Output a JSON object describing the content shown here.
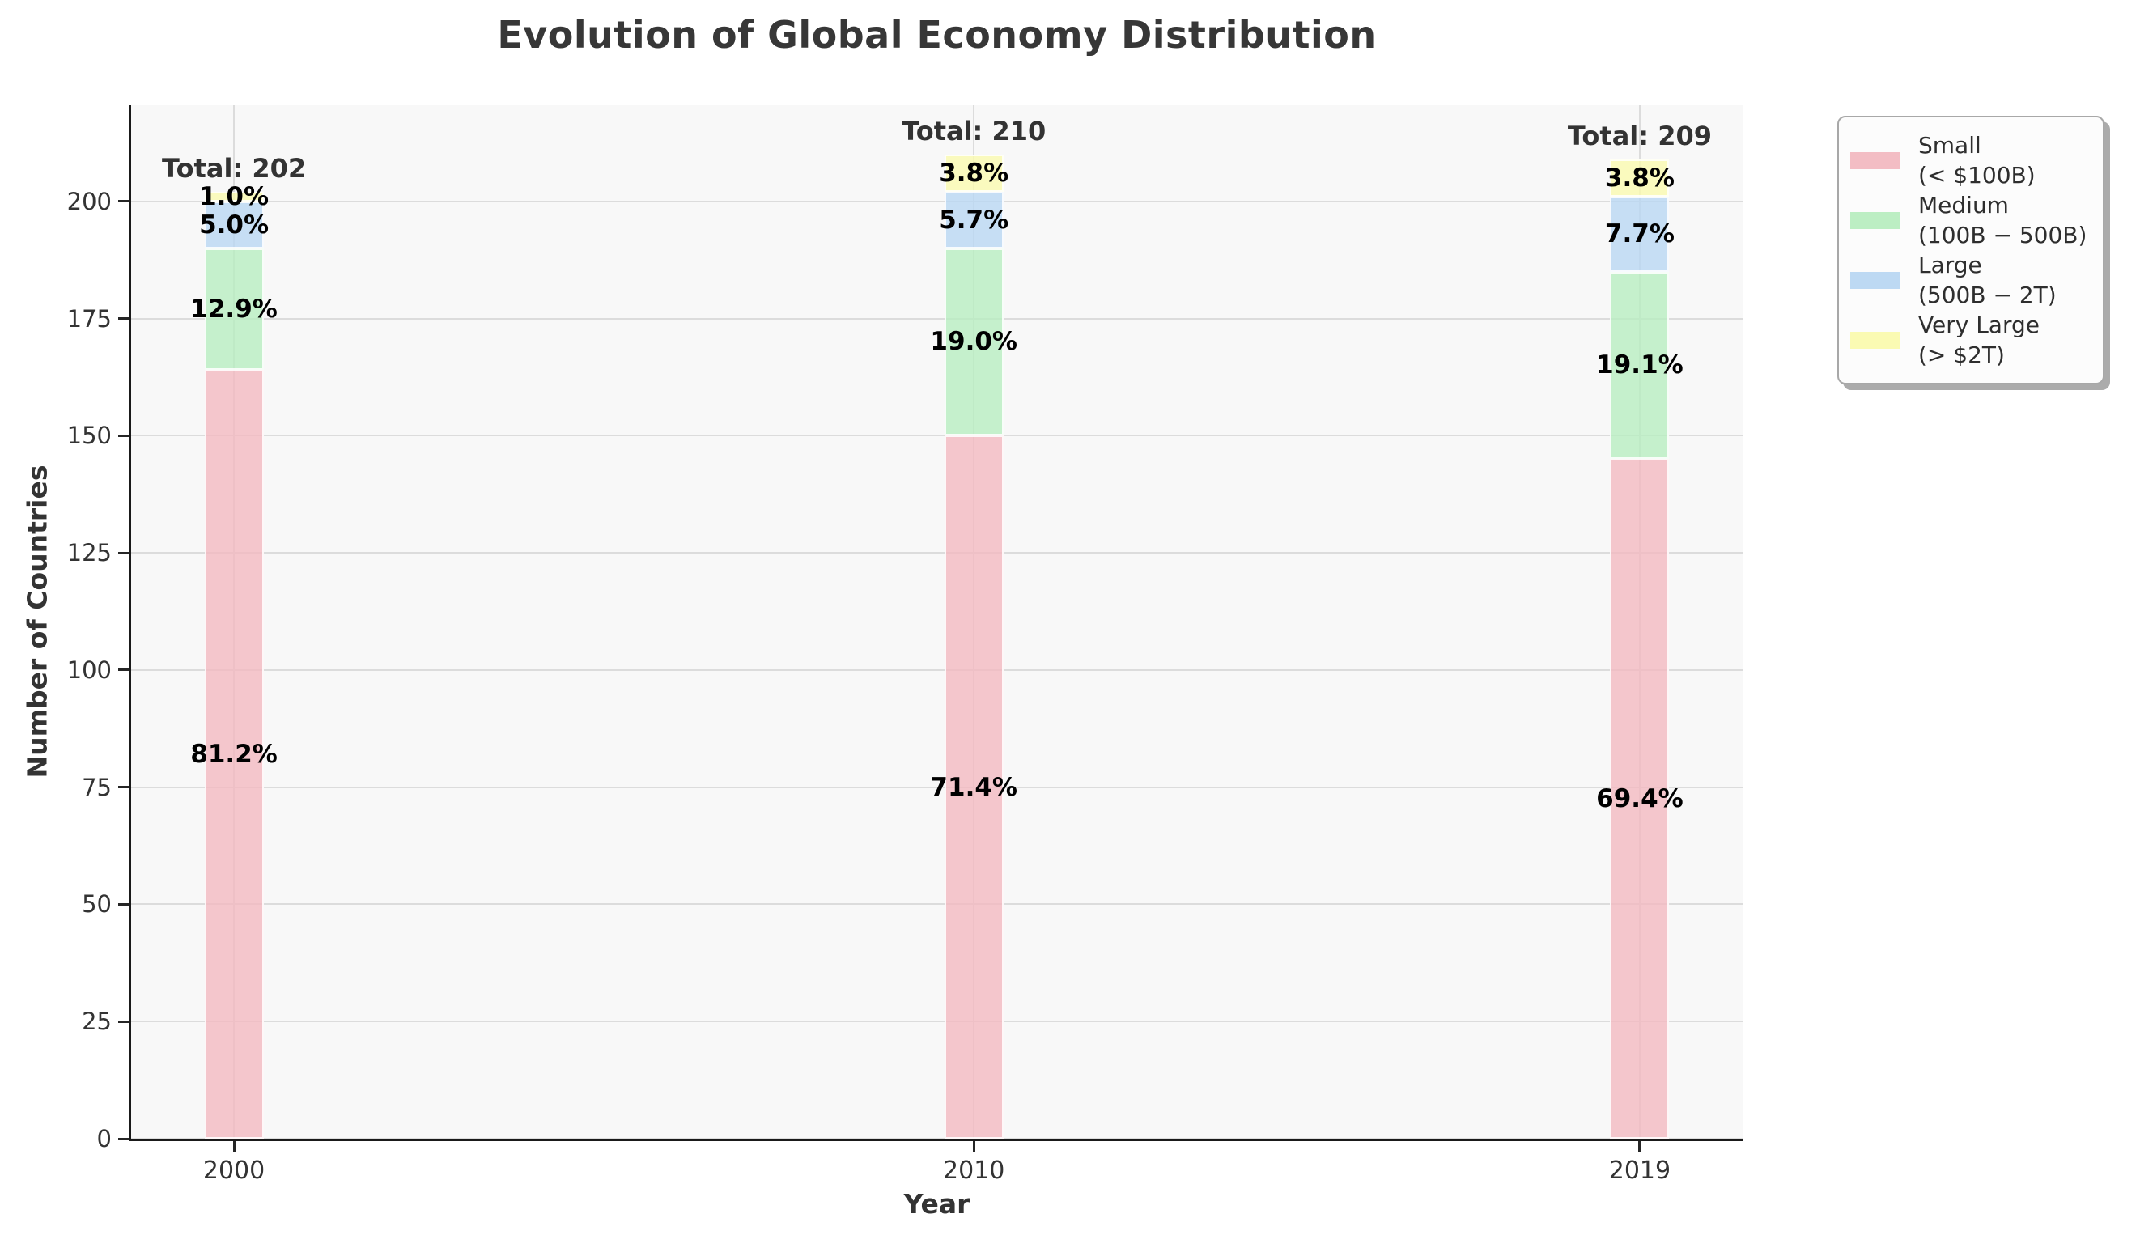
{
  "chart_data": {
    "type": "bar",
    "stacked": true,
    "title": "Evolution of Global Economy Distribution",
    "xlabel": "Year",
    "ylabel": "Number of Countries",
    "categories": [
      "2000",
      "2010",
      "2019"
    ],
    "x_numeric": [
      2000,
      2010,
      2019
    ],
    "series": [
      {
        "name": "Small",
        "range_label": "(< $100B)",
        "color": "#f2b9c1",
        "values": [
          164,
          150,
          145
        ],
        "pct_labels": [
          "81.2%",
          "71.4%",
          "69.4%"
        ]
      },
      {
        "name": "Medium",
        "range_label": "(100B − 500B)",
        "color": "#b8edc0",
        "values": [
          26,
          40,
          40
        ],
        "pct_labels": [
          "12.9%",
          "19.0%",
          "19.1%"
        ]
      },
      {
        "name": "Large",
        "range_label": "(500B − 2T)",
        "color": "#b9d7f2",
        "values": [
          10,
          12,
          16
        ],
        "pct_labels": [
          "5.0%",
          "5.7%",
          "7.7%"
        ]
      },
      {
        "name": "Very Large",
        "range_label": "(> $2T)",
        "color": "#fafaaf",
        "values": [
          2,
          8,
          8
        ],
        "pct_labels": [
          "1.0%",
          "3.8%",
          "3.8%"
        ]
      }
    ],
    "totals": [
      202,
      210,
      209
    ],
    "total_labels": [
      "Total: 202",
      "Total: 210",
      "Total: 209"
    ],
    "yticks": [
      0,
      25,
      50,
      75,
      100,
      125,
      150,
      175,
      200
    ],
    "ylim": [
      0,
      220.5
    ],
    "xlim": [
      1998.61,
      2020.39
    ],
    "bar_width_years": 0.8,
    "bar_alpha": 0.8,
    "grid": true,
    "legend_position": "outside-upper-right",
    "colors": {
      "plot_background": "#f8f8f8",
      "figure_background": "#ffffff",
      "gridline": "#dcdcdc",
      "spine": "#1a1a1a",
      "tick_text": "#333333",
      "label_text": "#000000"
    }
  }
}
